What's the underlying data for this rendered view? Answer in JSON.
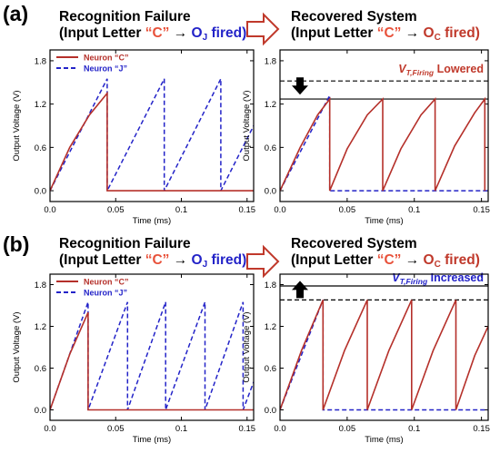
{
  "panels": [
    {
      "label": "(a)",
      "left_title": {
        "line1": "Recognition Failure",
        "line2_pre": "(Input Letter ",
        "letter": "“C”",
        "arrow": " → ",
        "o": "O",
        "o_sub": "J",
        "fired": " fired)"
      },
      "right_title": {
        "line1": "Recovered System",
        "line2_pre": "(Input Letter ",
        "letter": "“C”",
        "arrow": " → ",
        "o": "O",
        "o_sub": "C",
        "fired": " fired)"
      }
    },
    {
      "label": "(b)",
      "left_title": {
        "line1": "Recognition Failure",
        "line2_pre": "(Input Letter ",
        "letter": "“C”",
        "arrow": " → ",
        "o": "O",
        "o_sub": "J",
        "fired": " fired)"
      },
      "right_title": {
        "line1": "Recovered System",
        "line2_pre": "(Input Letter ",
        "letter": "“C”",
        "arrow": " → ",
        "o": "O",
        "o_sub": "C",
        "fired": " fired)"
      }
    }
  ],
  "colors": {
    "neuron_c": "#b5302a",
    "neuron_j": "#2323c8",
    "annotation_lowered": "#c0392b",
    "annotation_increased": "#2323c8",
    "title_accent": "#e8513a",
    "process_arrow": "#c0392b"
  },
  "chart_data": [
    {
      "type": "line",
      "xlabel": "Time (ms)",
      "ylabel": "Output Voltage (V)",
      "xlim": [
        0,
        0.155
      ],
      "ylim": [
        -0.15,
        1.95
      ],
      "xticks": [
        "0.0",
        "0.05",
        "0.1",
        "0.15"
      ],
      "yticks": [
        "0.0",
        "0.6",
        "1.2",
        "1.8"
      ],
      "xtick_values": [
        0,
        0.05,
        0.1,
        0.15
      ],
      "ytick_values": [
        0,
        0.6,
        1.2,
        1.8
      ],
      "legend": "top-left",
      "series": [
        {
          "name": "Neuron “C”",
          "style": "solid",
          "points": [
            [
              0,
              0
            ],
            [
              0.015,
              0.6
            ],
            [
              0.03,
              1.05
            ],
            [
              0.0435,
              1.35
            ],
            [
              0.0435,
              0
            ],
            [
              0.155,
              0
            ]
          ]
        },
        {
          "name": "Neuron “J”",
          "style": "dashed",
          "points": [
            [
              0,
              0
            ],
            [
              0.0435,
              1.55
            ],
            [
              0.0435,
              0
            ],
            [
              0.087,
              1.55
            ],
            [
              0.087,
              0
            ],
            [
              0.13,
              1.55
            ],
            [
              0.13,
              0
            ],
            [
              0.155,
              0.9
            ]
          ]
        }
      ]
    },
    {
      "type": "line",
      "xlabel": "Time (ms)",
      "ylabel": "Output Voltage (V)",
      "xlim": [
        0,
        0.155
      ],
      "ylim": [
        -0.15,
        1.95
      ],
      "xticks": [
        "0.0",
        "0.05",
        "0.1",
        "0.15"
      ],
      "yticks": [
        "0.0",
        "0.6",
        "1.2",
        "1.8"
      ],
      "xtick_values": [
        0,
        0.05,
        0.1,
        0.15
      ],
      "ytick_values": [
        0,
        0.6,
        1.2,
        1.8
      ],
      "annotation": {
        "v": "V",
        "sub": "T,Firing",
        "word": " Lowered"
      },
      "threshold_new": 1.27,
      "threshold_old": 1.52,
      "series": [
        {
          "name": "Neuron “C”",
          "style": "solid",
          "points": [
            [
              0,
              0
            ],
            [
              0.015,
              0.6
            ],
            [
              0.028,
              1.05
            ],
            [
              0.037,
              1.27
            ],
            [
              0.037,
              0
            ],
            [
              0.05,
              0.58
            ],
            [
              0.065,
              1.05
            ],
            [
              0.0765,
              1.27
            ],
            [
              0.0765,
              0
            ],
            [
              0.09,
              0.58
            ],
            [
              0.105,
              1.05
            ],
            [
              0.1155,
              1.27
            ],
            [
              0.1155,
              0
            ],
            [
              0.13,
              0.62
            ],
            [
              0.145,
              1.08
            ],
            [
              0.1525,
              1.27
            ],
            [
              0.1525,
              0
            ]
          ]
        },
        {
          "name": "Neuron “J”",
          "style": "dashed",
          "points": [
            [
              0,
              0
            ],
            [
              0.037,
              1.32
            ],
            [
              0.037,
              0
            ],
            [
              0.155,
              0
            ]
          ]
        }
      ]
    },
    {
      "type": "line",
      "xlabel": "Time (ms)",
      "ylabel": "Output Voltage (V)",
      "xlim": [
        0,
        0.155
      ],
      "ylim": [
        -0.15,
        1.95
      ],
      "xticks": [
        "0.0",
        "0.05",
        "0.1",
        "0.15"
      ],
      "yticks": [
        "0.0",
        "0.6",
        "1.2",
        "1.8"
      ],
      "xtick_values": [
        0,
        0.05,
        0.1,
        0.15
      ],
      "ytick_values": [
        0,
        0.6,
        1.2,
        1.8
      ],
      "legend": "top-left",
      "series": [
        {
          "name": "Neuron “C”",
          "style": "solid",
          "points": [
            [
              0,
              0
            ],
            [
              0.015,
              0.8
            ],
            [
              0.029,
              1.4
            ],
            [
              0.029,
              0
            ],
            [
              0.155,
              0
            ]
          ]
        },
        {
          "name": "Neuron “J”",
          "style": "dashed",
          "points": [
            [
              0,
              0
            ],
            [
              0.029,
              1.55
            ],
            [
              0.029,
              0
            ],
            [
              0.059,
              1.55
            ],
            [
              0.059,
              0
            ],
            [
              0.088,
              1.55
            ],
            [
              0.088,
              0
            ],
            [
              0.118,
              1.55
            ],
            [
              0.118,
              0
            ],
            [
              0.147,
              1.55
            ],
            [
              0.147,
              0
            ],
            [
              0.155,
              0.4
            ]
          ]
        }
      ]
    },
    {
      "type": "line",
      "xlabel": "Time (ms)",
      "ylabel": "Output Voltage (V)",
      "xlim": [
        0,
        0.155
      ],
      "ylim": [
        -0.15,
        1.95
      ],
      "xticks": [
        "0.0",
        "0.05",
        "0.1",
        "0.15"
      ],
      "yticks": [
        "0.0",
        "0.6",
        "1.2",
        "1.8"
      ],
      "xtick_values": [
        0,
        0.05,
        0.1,
        0.15
      ],
      "ytick_values": [
        0,
        0.6,
        1.2,
        1.8
      ],
      "annotation": {
        "v": "V",
        "sub": "T,Firing",
        "word": " Increased"
      },
      "threshold_new": 1.78,
      "threshold_old": 1.58,
      "series": [
        {
          "name": "Neuron “C”",
          "style": "solid",
          "points": [
            [
              0,
              0
            ],
            [
              0.016,
              0.85
            ],
            [
              0.032,
              1.58
            ],
            [
              0.032,
              0
            ],
            [
              0.048,
              0.85
            ],
            [
              0.065,
              1.58
            ],
            [
              0.065,
              0
            ],
            [
              0.081,
              0.85
            ],
            [
              0.098,
              1.58
            ],
            [
              0.098,
              0
            ],
            [
              0.114,
              0.85
            ],
            [
              0.131,
              1.58
            ],
            [
              0.131,
              0
            ],
            [
              0.145,
              0.78
            ],
            [
              0.155,
              1.2
            ]
          ]
        },
        {
          "name": "Neuron “J”",
          "style": "dashed",
          "points": [
            [
              0,
              0
            ],
            [
              0.032,
              1.58
            ],
            [
              0.032,
              0
            ],
            [
              0.155,
              0
            ]
          ]
        }
      ]
    }
  ]
}
